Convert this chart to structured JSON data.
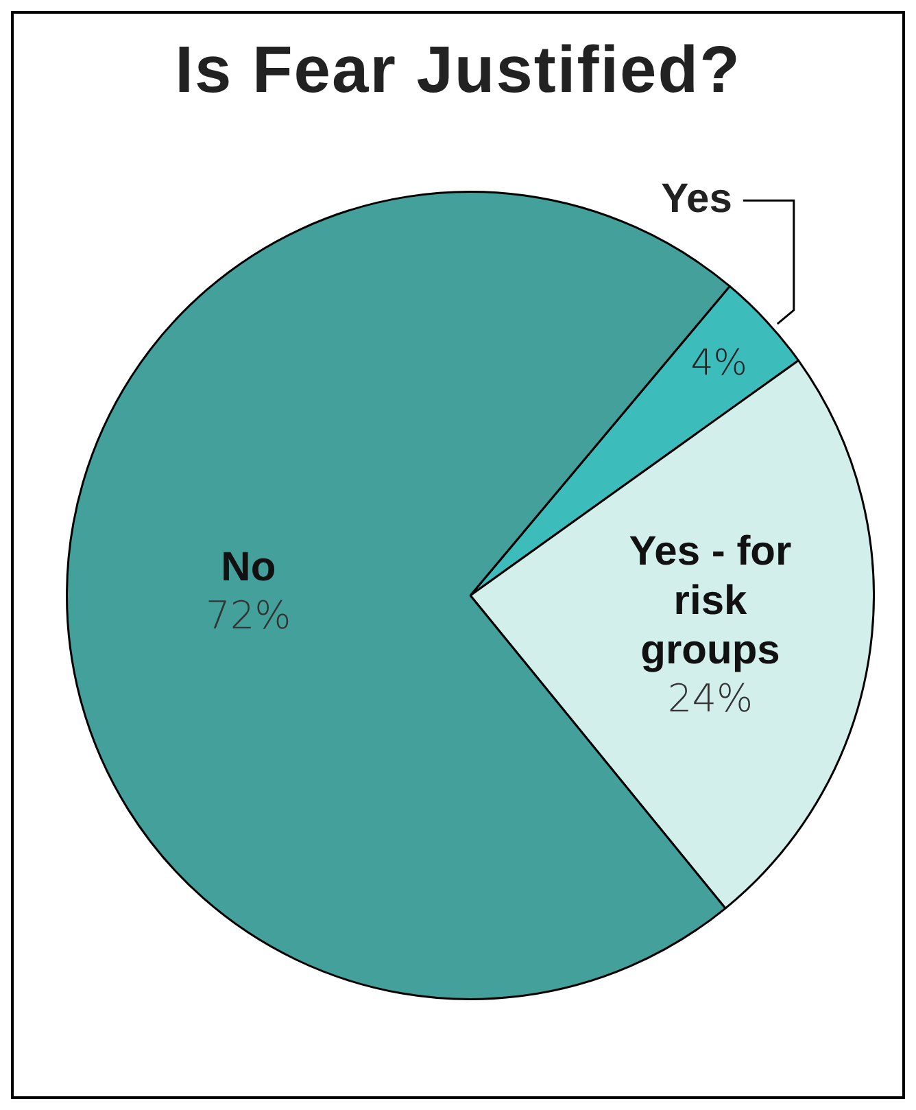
{
  "chart_data": {
    "type": "pie",
    "title": "Is Fear Justified?",
    "categories": [
      "Yes",
      "Yes - for risk groups",
      "No"
    ],
    "values": [
      4,
      24,
      72
    ],
    "value_labels": [
      "4%",
      "24%",
      "72%"
    ],
    "colors": [
      "#3dbcbc",
      "#d3efec",
      "#43a09a"
    ]
  }
}
